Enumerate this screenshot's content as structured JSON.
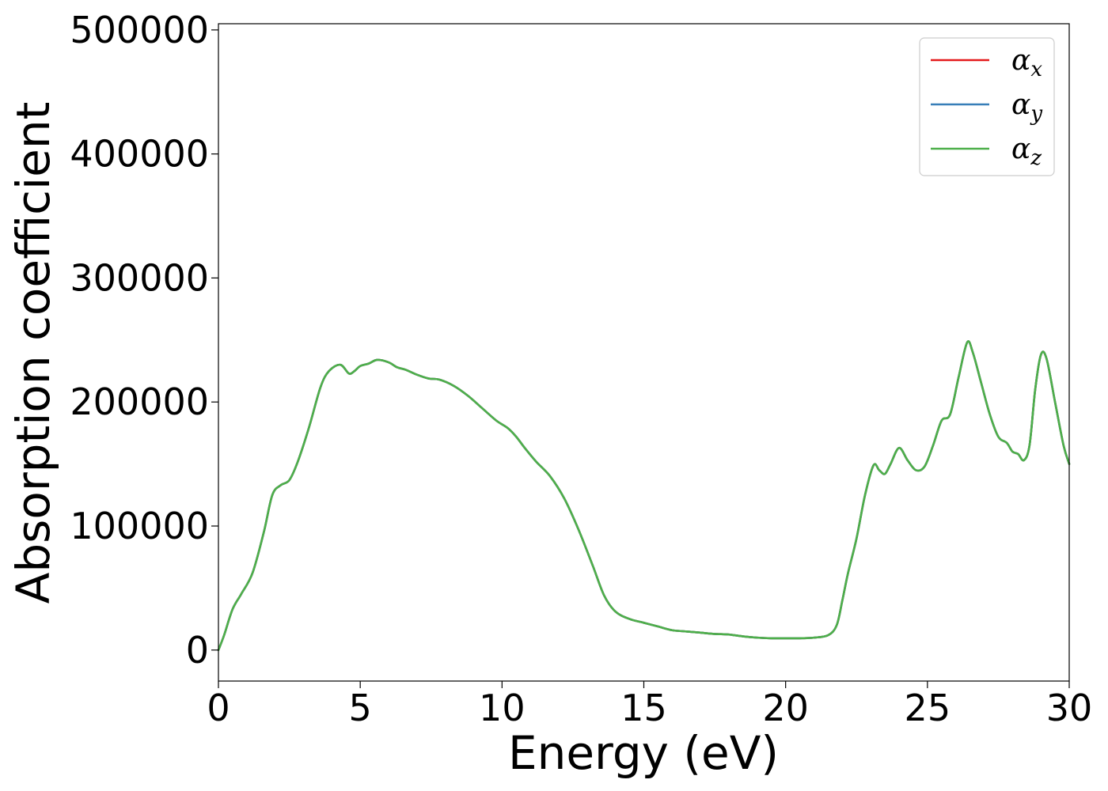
{
  "chart_data": {
    "type": "line",
    "xlabel": "Energy (eV)",
    "ylabel": "Absorption coefficient",
    "xlim": [
      0,
      30
    ],
    "ylim": [
      -25000,
      505000
    ],
    "xticks": [
      0,
      5,
      10,
      15,
      20,
      25,
      30
    ],
    "yticks": [
      0,
      100000,
      200000,
      300000,
      400000,
      500000
    ],
    "xtick_labels": [
      "0",
      "5",
      "10",
      "15",
      "20",
      "25",
      "30"
    ],
    "ytick_labels": [
      "0",
      "100000",
      "200000",
      "300000",
      "400000",
      "500000"
    ],
    "grid": false,
    "legend_position": "top-right",
    "x": [
      0,
      0.2,
      0.5,
      0.8,
      1.2,
      1.6,
      1.9,
      2.2,
      2.5,
      2.8,
      3.2,
      3.6,
      3.9,
      4.3,
      4.6,
      4.8,
      5.0,
      5.3,
      5.6,
      6.0,
      6.3,
      6.6,
      7.0,
      7.4,
      7.8,
      8.3,
      8.8,
      9.3,
      9.8,
      10.2,
      10.5,
      10.8,
      11.2,
      11.7,
      12.2,
      12.7,
      13.2,
      13.6,
      14.0,
      14.5,
      15.0,
      15.5,
      16.0,
      16.5,
      17.0,
      17.5,
      18.0,
      18.5,
      19.0,
      19.5,
      20.0,
      20.5,
      21.0,
      21.5,
      21.8,
      22.0,
      22.2,
      22.5,
      22.8,
      23.1,
      23.3,
      23.5,
      23.7,
      24.0,
      24.3,
      24.6,
      24.9,
      25.2,
      25.5,
      25.8,
      26.1,
      26.4,
      26.6,
      26.9,
      27.2,
      27.5,
      27.8,
      28.0,
      28.2,
      28.4,
      28.6,
      28.8,
      29.0,
      29.2,
      29.5,
      29.8,
      30.0
    ],
    "series": [
      {
        "name": "αx",
        "label_main": "α",
        "label_sub": "x",
        "color": "#e41a1c",
        "values": [
          0,
          12000,
          33000,
          45000,
          62000,
          95000,
          125000,
          133000,
          137000,
          152000,
          180000,
          212000,
          225000,
          230000,
          223000,
          225000,
          229000,
          231000,
          234000,
          232000,
          228000,
          226000,
          222000,
          219000,
          218000,
          213000,
          205000,
          195000,
          185000,
          179000,
          172000,
          163000,
          152000,
          140000,
          122000,
          97000,
          68000,
          44000,
          31000,
          25000,
          22000,
          19000,
          16000,
          15000,
          14000,
          13000,
          12500,
          11000,
          10000,
          9500,
          9500,
          9500,
          10000,
          12000,
          20000,
          40000,
          62000,
          90000,
          125000,
          149000,
          145000,
          142000,
          150000,
          163000,
          153000,
          145000,
          148000,
          165000,
          185000,
          190000,
          220000,
          248000,
          240000,
          215000,
          190000,
          172000,
          167000,
          160000,
          158000,
          153000,
          165000,
          210000,
          238000,
          235000,
          200000,
          165000,
          150000
        ]
      },
      {
        "name": "αy",
        "label_main": "α",
        "label_sub": "y",
        "color": "#377eb8",
        "values": [
          0,
          12000,
          33000,
          45000,
          62000,
          95000,
          125000,
          133000,
          137000,
          152000,
          180000,
          212000,
          225000,
          230000,
          223000,
          225000,
          229000,
          231000,
          234000,
          232000,
          228000,
          226000,
          222000,
          219000,
          218000,
          213000,
          205000,
          195000,
          185000,
          179000,
          172000,
          163000,
          152000,
          140000,
          122000,
          97000,
          68000,
          44000,
          31000,
          25000,
          22000,
          19000,
          16000,
          15000,
          14000,
          13000,
          12500,
          11000,
          10000,
          9500,
          9500,
          9500,
          10000,
          12000,
          20000,
          40000,
          62000,
          90000,
          125000,
          149000,
          145000,
          142000,
          150000,
          163000,
          153000,
          145000,
          148000,
          165000,
          185000,
          190000,
          220000,
          248000,
          240000,
          215000,
          190000,
          172000,
          167000,
          160000,
          158000,
          153000,
          165000,
          210000,
          238000,
          235000,
          200000,
          165000,
          150000
        ]
      },
      {
        "name": "αz",
        "label_main": "α",
        "label_sub": "z",
        "color": "#4daf4a",
        "values": [
          0,
          12000,
          33000,
          45000,
          62000,
          95000,
          125000,
          133000,
          137000,
          152000,
          180000,
          212000,
          225000,
          230000,
          223000,
          225000,
          229000,
          231000,
          234000,
          232000,
          228000,
          226000,
          222000,
          219000,
          218000,
          213000,
          205000,
          195000,
          185000,
          179000,
          172000,
          163000,
          152000,
          140000,
          122000,
          97000,
          68000,
          44000,
          31000,
          25000,
          22000,
          19000,
          16000,
          15000,
          14000,
          13000,
          12500,
          11000,
          10000,
          9500,
          9500,
          9500,
          10000,
          12000,
          20000,
          40000,
          62000,
          90000,
          125000,
          149000,
          145000,
          142000,
          150000,
          163000,
          153000,
          145000,
          148000,
          165000,
          185000,
          190000,
          220000,
          248000,
          240000,
          215000,
          190000,
          172000,
          167000,
          160000,
          158000,
          153000,
          165000,
          210000,
          238000,
          235000,
          200000,
          165000,
          150000
        ]
      }
    ]
  }
}
